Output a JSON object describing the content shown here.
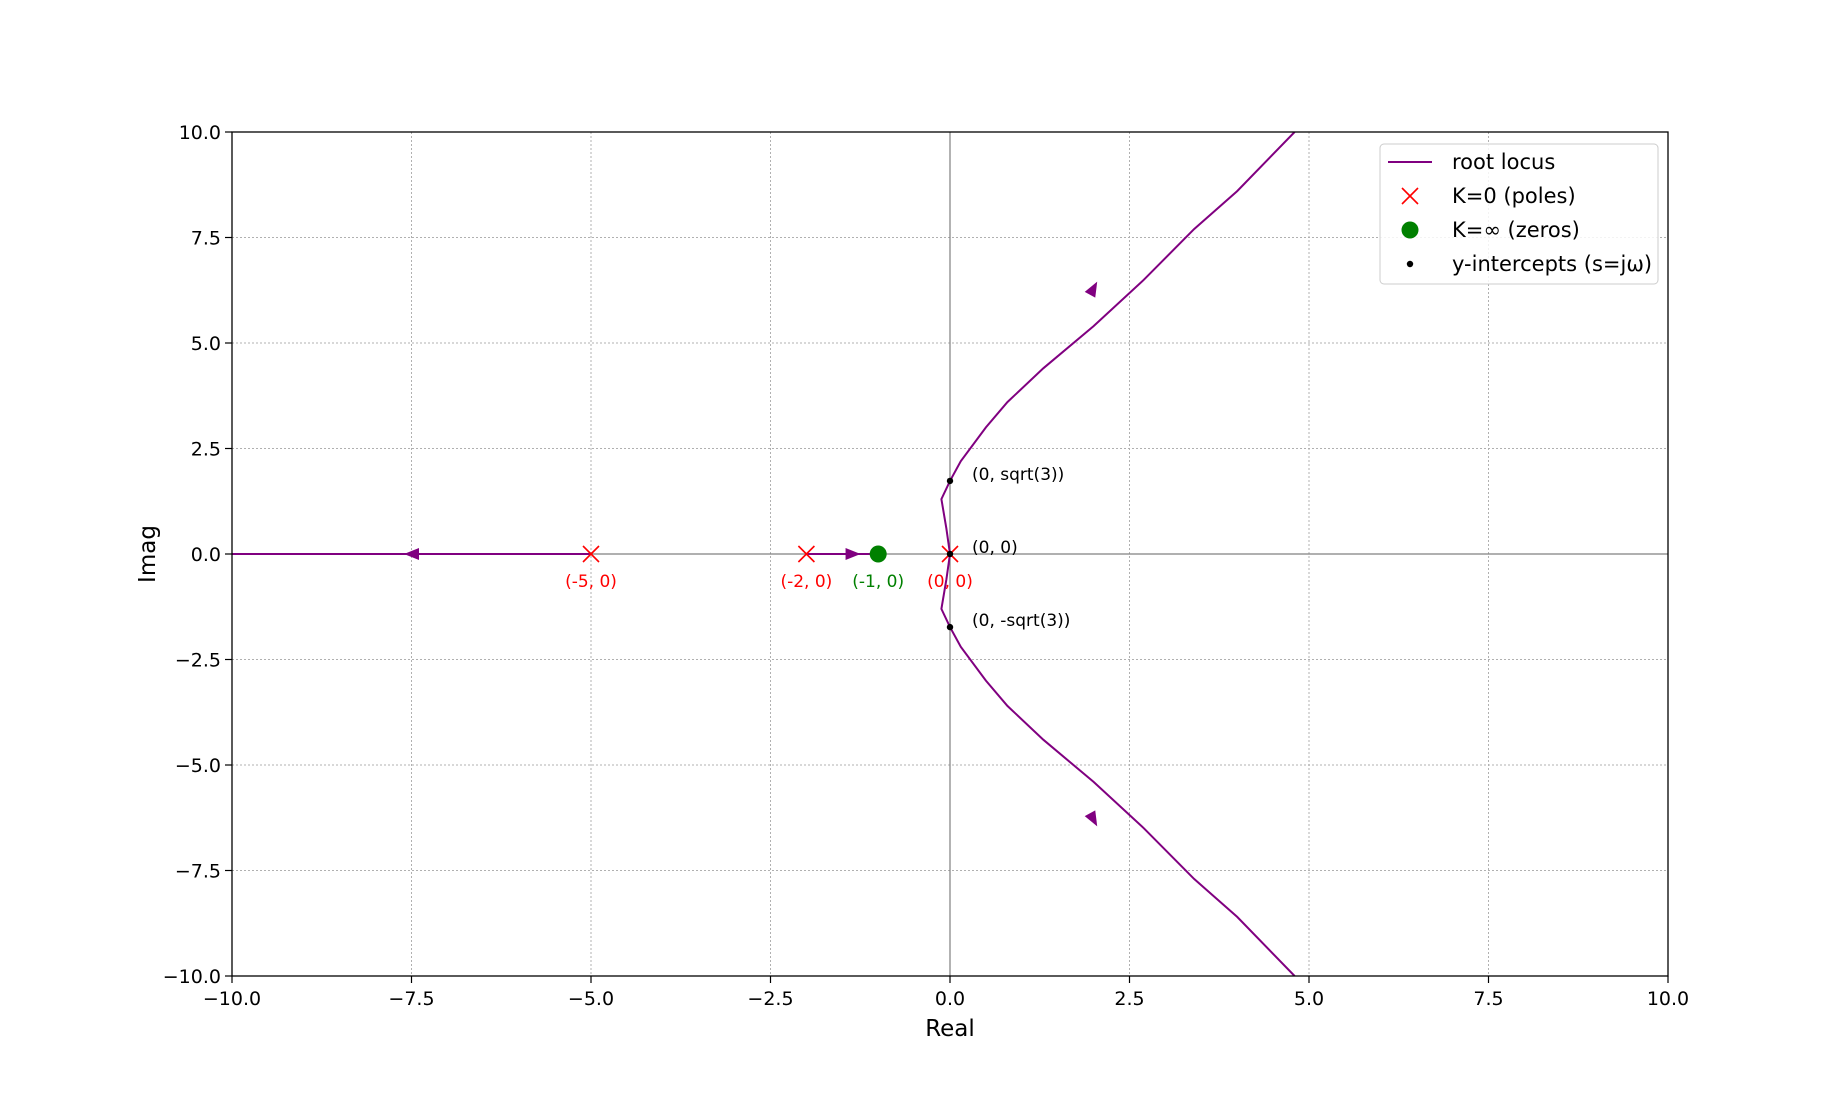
{
  "chart_data": {
    "type": "scatter",
    "title": "",
    "xlabel": "Real",
    "ylabel": "Imag",
    "xlim": [
      -10,
      10
    ],
    "ylim": [
      -10,
      10
    ],
    "xticks": [
      -10,
      -7.5,
      -5,
      -2.5,
      0,
      2.5,
      5,
      7.5,
      10
    ],
    "yticks": [
      -10,
      -7.5,
      -5,
      -2.5,
      0,
      2.5,
      5,
      7.5,
      10
    ],
    "xtick_labels": [
      "−10.0",
      "−7.5",
      "−5.0",
      "−2.5",
      "0.0",
      "2.5",
      "5.0",
      "7.5",
      "10.0"
    ],
    "ytick_labels": [
      "−10.0",
      "−7.5",
      "−5.0",
      "−2.5",
      "0.0",
      "2.5",
      "5.0",
      "7.5",
      "10.0"
    ],
    "grid": true,
    "legend_position": "top-right",
    "colors": {
      "locus": "#800080",
      "poles": "#ff0000",
      "zeros": "#008000",
      "intercepts": "#000000",
      "grid": "#b0b0b0",
      "origin_axes": "#808080"
    },
    "series": [
      {
        "name": "root locus",
        "kind": "line",
        "branches": [
          {
            "points": [
              [
                -5,
                0
              ],
              [
                -10,
                0
              ]
            ],
            "arrows": [
              [
                -7.5,
                0,
                -1,
                0
              ]
            ]
          },
          {
            "points": [
              [
                -2,
                0
              ],
              [
                -1,
                0
              ]
            ],
            "arrows": [
              [
                -1.35,
                0,
                1,
                0
              ]
            ]
          },
          {
            "points": [
              [
                0,
                0
              ],
              [
                -0.05,
                0.6
              ],
              [
                -0.12,
                1.3
              ],
              [
                0,
                1.732
              ],
              [
                0.15,
                2.2
              ],
              [
                0.5,
                3.0
              ],
              [
                0.8,
                3.6
              ],
              [
                1.3,
                4.4
              ],
              [
                2.0,
                5.4
              ],
              [
                2.7,
                6.5
              ],
              [
                3.4,
                7.7
              ],
              [
                4.0,
                8.6
              ],
              [
                4.8,
                10.0
              ]
            ],
            "arrows": [
              [
                2.0,
                6.3,
                0.55,
                1
              ]
            ]
          },
          {
            "points": [
              [
                0,
                0
              ],
              [
                -0.05,
                -0.6
              ],
              [
                -0.12,
                -1.3
              ],
              [
                0,
                -1.732
              ],
              [
                0.15,
                -2.2
              ],
              [
                0.5,
                -3.0
              ],
              [
                0.8,
                -3.6
              ],
              [
                1.3,
                -4.4
              ],
              [
                2.0,
                -5.4
              ],
              [
                2.7,
                -6.5
              ],
              [
                3.4,
                -7.7
              ],
              [
                4.0,
                -8.6
              ],
              [
                4.8,
                -10.0
              ]
            ],
            "arrows": [
              [
                2.0,
                -6.3,
                0.55,
                -1
              ]
            ]
          }
        ]
      },
      {
        "name": "K=0 (poles)",
        "kind": "marker-x",
        "points": [
          [
            -5,
            0
          ],
          [
            -2,
            0
          ],
          [
            0,
            0
          ]
        ]
      },
      {
        "name": "K=∞ (zeros)",
        "kind": "marker-circle",
        "points": [
          [
            -1,
            0
          ]
        ]
      },
      {
        "name": "y-intercepts (s=jω)",
        "kind": "marker-dot",
        "points": [
          [
            0,
            1.732
          ],
          [
            0,
            0
          ],
          [
            0,
            -1.732
          ]
        ]
      }
    ],
    "annotations": [
      {
        "text": "(-5, 0)",
        "x": -5,
        "y": 0,
        "color": "#ff0000",
        "pos": "below"
      },
      {
        "text": "(-2, 0)",
        "x": -2,
        "y": 0,
        "color": "#ff0000",
        "pos": "below"
      },
      {
        "text": "(0, 0)",
        "x": 0,
        "y": 0,
        "color": "#ff0000",
        "pos": "below"
      },
      {
        "text": "(-1, 0)",
        "x": -1,
        "y": 0,
        "color": "#008000",
        "pos": "below"
      },
      {
        "text": "(0, sqrt(3))",
        "x": 0,
        "y": 1.732,
        "color": "#000000",
        "pos": "right"
      },
      {
        "text": "(0, 0)",
        "x": 0,
        "y": 0,
        "color": "#000000",
        "pos": "right"
      },
      {
        "text": "(0, -sqrt(3))",
        "x": 0,
        "y": -1.732,
        "color": "#000000",
        "pos": "right"
      }
    ]
  }
}
